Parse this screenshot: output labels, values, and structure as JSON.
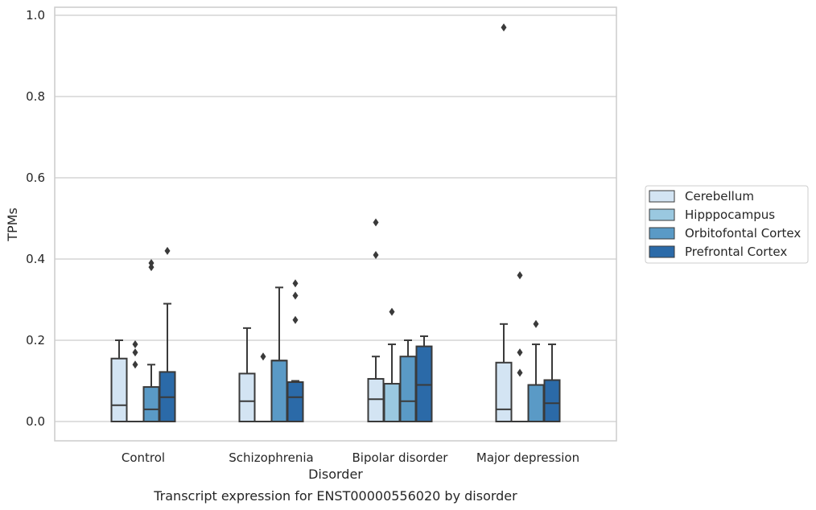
{
  "caption": "Transcript expression for ENST00000556020 by disorder",
  "chart_data": {
    "type": "box",
    "title": "",
    "xlabel": "Disorder",
    "ylabel": "TPMs",
    "ylim": [
      -0.045,
      1.02
    ],
    "yticks": [
      "0.0",
      "0.2",
      "0.4",
      "0.6",
      "0.8",
      "1.0"
    ],
    "grid": "horizontal",
    "legend_position": "right",
    "categories": [
      "Control",
      "Schizophrenia",
      "Bipolar disorder",
      "Major depression"
    ],
    "series": [
      {
        "name": "Cerebellum",
        "color": "#d3e4f3",
        "boxes": [
          {
            "whislo": 0,
            "q1": 0,
            "med": 0.04,
            "q3": 0.155,
            "whishi": 0.2,
            "fliers": []
          },
          {
            "whislo": 0,
            "q1": 0,
            "med": 0.05,
            "q3": 0.118,
            "whishi": 0.23,
            "fliers": []
          },
          {
            "whislo": 0,
            "q1": 0,
            "med": 0.055,
            "q3": 0.105,
            "whishi": 0.16,
            "fliers": [
              0.41,
              0.49
            ]
          },
          {
            "whislo": 0,
            "q1": 0,
            "med": 0.03,
            "q3": 0.145,
            "whishi": 0.24,
            "fliers": [
              0.97
            ]
          }
        ]
      },
      {
        "name": "Hipppocampus",
        "color": "#9ac8e0",
        "boxes": [
          {
            "whislo": 0,
            "q1": 0,
            "med": 0,
            "q3": 0,
            "whishi": 0,
            "fliers": [
              0.14,
              0.17,
              0.19
            ]
          },
          {
            "whislo": 0,
            "q1": 0,
            "med": 0,
            "q3": 0,
            "whishi": 0,
            "fliers": [
              0.16
            ]
          },
          {
            "whislo": 0,
            "q1": 0,
            "med": 0,
            "q3": 0.093,
            "whishi": 0.19,
            "fliers": [
              0.27
            ]
          },
          {
            "whislo": 0,
            "q1": 0,
            "med": 0,
            "q3": 0,
            "whishi": 0,
            "fliers": [
              0.12,
              0.17,
              0.36
            ]
          }
        ]
      },
      {
        "name": "Orbitofontal Cortex",
        "color": "#5a9ac6",
        "boxes": [
          {
            "whislo": 0,
            "q1": 0,
            "med": 0.03,
            "q3": 0.085,
            "whishi": 0.14,
            "fliers": [
              0.38,
              0.39
            ]
          },
          {
            "whislo": 0,
            "q1": 0,
            "med": 0.15,
            "q3": 0.15,
            "whishi": 0.33,
            "fliers": []
          },
          {
            "whislo": 0,
            "q1": 0,
            "med": 0.05,
            "q3": 0.16,
            "whishi": 0.2,
            "fliers": []
          },
          {
            "whislo": 0,
            "q1": 0,
            "med": 0.09,
            "q3": 0.09,
            "whishi": 0.19,
            "fliers": [
              0.24
            ]
          }
        ]
      },
      {
        "name": "Prefrontal Cortex",
        "color": "#2b6aa8",
        "boxes": [
          {
            "whislo": 0,
            "q1": 0,
            "med": 0.06,
            "q3": 0.122,
            "whishi": 0.29,
            "fliers": [
              0.42
            ]
          },
          {
            "whislo": 0,
            "q1": 0,
            "med": 0.06,
            "q3": 0.097,
            "whishi": 0.1,
            "fliers": [
              0.25,
              0.31,
              0.34
            ]
          },
          {
            "whislo": 0,
            "q1": 0,
            "med": 0.09,
            "q3": 0.185,
            "whishi": 0.21,
            "fliers": []
          },
          {
            "whislo": 0,
            "q1": 0,
            "med": 0.045,
            "q3": 0.102,
            "whishi": 0.19,
            "fliers": []
          }
        ]
      }
    ]
  }
}
